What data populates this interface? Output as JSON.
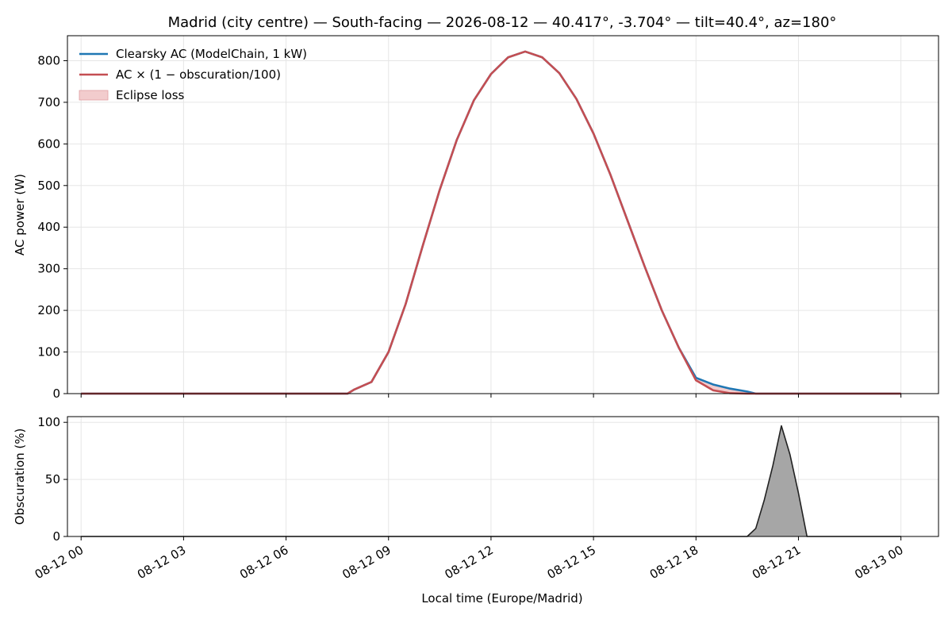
{
  "figure": {
    "title": "Madrid (city centre) — South-facing — 2026-08-12 — 40.417°, -3.704° — tilt=40.4°, az=180°",
    "xlabel": "Local time (Europe/Madrid)"
  },
  "colors": {
    "clearsky": "#1f77b4",
    "eclipse_line": "#c44e52",
    "eclipse_fill": "#f2cccd",
    "obscuration_fill": "#a6a6a6",
    "obscuration_line": "#222222",
    "grid": "#e6e6e6"
  },
  "chart_data": [
    {
      "type": "line",
      "ylabel": "AC power (W)",
      "ylim": [
        0,
        860
      ],
      "yticks": [
        0,
        100,
        200,
        300,
        400,
        500,
        600,
        700,
        800
      ],
      "grid": true,
      "legend_position": "top-left",
      "xlim_hours": [
        -0.4,
        25.1
      ],
      "x_units": "hours since 2026-08-12 00:00 local",
      "series": [
        {
          "name": "Clearsky AC (ModelChain, 1 kW)",
          "x": [
            0,
            7.8,
            8,
            8.5,
            9,
            9.5,
            10,
            10.5,
            11,
            11.5,
            12,
            12.5,
            13,
            13.5,
            14,
            14.5,
            15,
            15.5,
            16,
            16.5,
            17,
            17.5,
            18,
            18.5,
            19,
            19.5,
            19.75,
            20,
            20.25,
            20.5,
            20.75,
            21,
            24
          ],
          "values": [
            0,
            0,
            10,
            28,
            100,
            215,
            355,
            490,
            610,
            705,
            768,
            808,
            822,
            808,
            770,
            708,
            625,
            525,
            415,
            305,
            200,
            110,
            38,
            22,
            12,
            5,
            0,
            0,
            0,
            0,
            0,
            0,
            0
          ]
        },
        {
          "name": "AC × (1 − obscuration/100)",
          "x": [
            0,
            7.8,
            8,
            8.5,
            9,
            9.5,
            10,
            10.5,
            11,
            11.5,
            12,
            12.5,
            13,
            13.5,
            14,
            14.5,
            15,
            15.5,
            16,
            16.5,
            17,
            17.5,
            18,
            18.5,
            19,
            19.5,
            19.75,
            20,
            20.25,
            20.5,
            20.75,
            21,
            24
          ],
          "values": [
            0,
            0,
            10,
            28,
            100,
            215,
            355,
            490,
            610,
            705,
            768,
            808,
            822,
            808,
            770,
            708,
            625,
            525,
            415,
            305,
            200,
            110,
            32,
            8,
            1,
            0,
            0,
            0,
            0,
            0,
            0,
            0,
            0
          ]
        },
        {
          "name": "Eclipse loss",
          "style": "fill_between"
        }
      ]
    },
    {
      "type": "area",
      "ylabel": "Obscuration (%)",
      "ylim": [
        0,
        105
      ],
      "yticks": [
        0,
        50,
        100
      ],
      "grid": true,
      "series": [
        {
          "x": [
            0,
            19.5,
            19.75,
            20,
            20.25,
            20.5,
            20.75,
            21,
            21.25,
            24
          ],
          "values": [
            0,
            0,
            7,
            32,
            62,
            97,
            72,
            38,
            0,
            0
          ]
        }
      ]
    }
  ],
  "xaxis": {
    "ticks": [
      {
        "hour": 0,
        "label": "08-12 00"
      },
      {
        "hour": 3,
        "label": "08-12 03"
      },
      {
        "hour": 6,
        "label": "08-12 06"
      },
      {
        "hour": 9,
        "label": "08-12 09"
      },
      {
        "hour": 12,
        "label": "08-12 12"
      },
      {
        "hour": 15,
        "label": "08-12 15"
      },
      {
        "hour": 18,
        "label": "08-12 18"
      },
      {
        "hour": 21,
        "label": "08-12 21"
      },
      {
        "hour": 24,
        "label": "08-13 00"
      }
    ]
  }
}
